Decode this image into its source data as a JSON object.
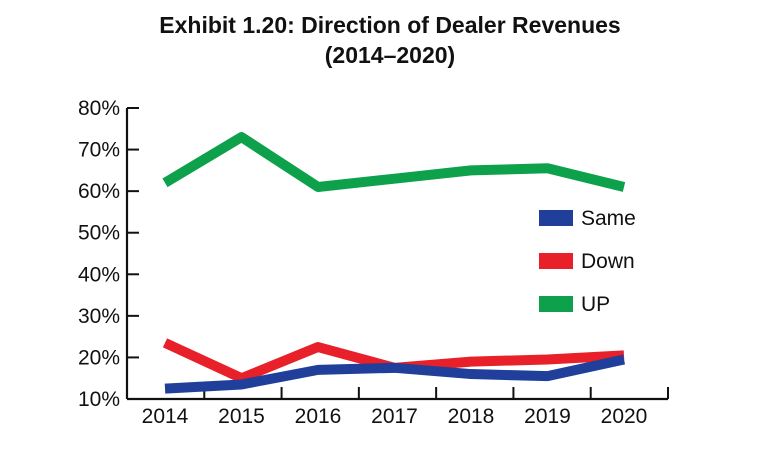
{
  "chart_data": {
    "type": "line",
    "title": "Exhibit 1.20: Direction of Dealer Revenues",
    "subtitle": "(2014–2020)",
    "xlabel": "",
    "ylabel": "",
    "x": [
      "2014",
      "2015",
      "2016",
      "2017",
      "2018",
      "2019",
      "2020"
    ],
    "y_ticks": [
      "10%",
      "20%",
      "30%",
      "40%",
      "50%",
      "60%",
      "70%",
      "80%"
    ],
    "ylim": [
      10,
      80
    ],
    "grid": false,
    "legend_position": "right",
    "series": [
      {
        "name": "Same",
        "color": "#1f3f9a",
        "values": [
          12.5,
          13.5,
          17,
          17.5,
          16,
          15.5,
          19.5
        ]
      },
      {
        "name": "Down",
        "color": "#e8202a",
        "values": [
          23.5,
          15,
          22.5,
          17.5,
          19,
          19.5,
          20.5
        ]
      },
      {
        "name": "UP",
        "color": "#0da14b",
        "values": [
          62,
          73,
          61,
          63,
          65,
          65.5,
          61
        ]
      }
    ]
  }
}
